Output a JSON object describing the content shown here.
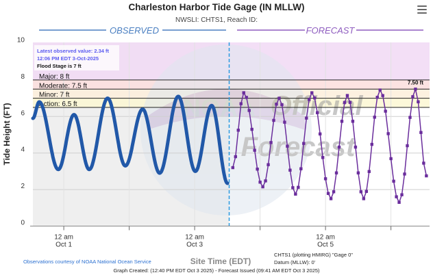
{
  "header": {
    "title": "Charleston Harbor Tide Gage (IN MLLW)",
    "subtitle": "NWSLI: CHTS1, Reach ID:",
    "menu_icon": "hamburger-menu-icon"
  },
  "sections": {
    "observed": "OBSERVED",
    "forecast": "FORECAST"
  },
  "info_box": {
    "latest_line1": "Latest observed value: 2.34 ft",
    "latest_line2": "12:06 PM EDT 3-Oct-2025",
    "flood_stage": "Flood Stage is 7 ft"
  },
  "watermark": {
    "text1": "Official",
    "text2": "Forecast",
    "seal_text1": "NATIONAL OCEANIC AND ATMOSPHERIC ADMINISTRATION",
    "seal_text2": "U.S. DEPARTMENT OF COMMERCE",
    "logo": "NOAA"
  },
  "footer": {
    "credit": "Observations courtesy of NOAA National Ocean Service",
    "xlabel": "Site Time (EDT)",
    "site_line1": "CHTS1 (plotting HMIRG) \"Gage 0\"",
    "site_line2": "Datum (MLLW): 0'",
    "created": "Graph Created: (12:40 PM EDT Oct 3 2025) - Forecast Issued (09:41 AM EDT Oct 3 2025)"
  },
  "chart_data": {
    "type": "line",
    "title": "Charleston Harbor Tide Gage (IN MLLW)",
    "ylabel": "Tide Height (FT)",
    "xlabel": "Site Time (EDT)",
    "ylim": [
      0,
      10
    ],
    "yticks": [
      0,
      2,
      4,
      6,
      8,
      10
    ],
    "xlim": [
      "2025-09-30 12:40",
      "2025-10-06 14:10"
    ],
    "xticks": [
      {
        "t": "2025-10-01 00:00",
        "line1": "12 am",
        "line2": "Oct 1"
      },
      {
        "t": "2025-10-02 00:00",
        "line1": "",
        "line2": ""
      },
      {
        "t": "2025-10-03 00:00",
        "line1": "12 am",
        "line2": "Oct 3"
      },
      {
        "t": "2025-10-04 00:00",
        "line1": "",
        "line2": ""
      },
      {
        "t": "2025-10-05 00:00",
        "line1": "12 am",
        "line2": "Oct 5"
      },
      {
        "t": "2025-10-06 00:00",
        "line1": "",
        "line2": ""
      }
    ],
    "grid": true,
    "now": "2025-10-03 12:40",
    "thresholds": [
      {
        "label": "Major: 8 ft",
        "value": 8,
        "color": "#f1d9f5"
      },
      {
        "label": "Moderate: 7.5 ft",
        "value": 7.5,
        "color": "#fbdedd"
      },
      {
        "label": "Minor: 7 ft",
        "value": 7,
        "color": "#fdeedb"
      },
      {
        "label": "Action: 6.5 ft",
        "value": 6.5,
        "color": "#fcf7d2"
      }
    ],
    "max_forecast_label": "7.50 ft",
    "series": [
      {
        "name": "OBSERVED",
        "color": "#2158a8",
        "points": [
          [
            "2025-09-30 12:40",
            5.9
          ],
          [
            "2025-09-30 15:00",
            6.8
          ],
          [
            "2025-09-30 22:00",
            3.1
          ],
          [
            "2025-10-01 03:45",
            6.1
          ],
          [
            "2025-10-01 09:20",
            3.1
          ],
          [
            "2025-10-01 16:05",
            7.0
          ],
          [
            "2025-10-01 22:35",
            3.3
          ],
          [
            "2025-10-02 04:55",
            6.4
          ],
          [
            "2025-10-02 11:10",
            2.9
          ],
          [
            "2025-10-02 18:00",
            7.1
          ],
          [
            "2025-10-03 00:15",
            3.0
          ],
          [
            "2025-10-03 06:15",
            6.6
          ],
          [
            "2025-10-03 12:06",
            2.34
          ]
        ]
      },
      {
        "name": "FORECAST",
        "color": "#6a2d9c",
        "points": [
          [
            "2025-10-03 14:00",
            3.2
          ],
          [
            "2025-10-03 18:00",
            7.3
          ],
          [
            "2025-10-04 01:00",
            2.15
          ],
          [
            "2025-10-04 07:00",
            7.0
          ],
          [
            "2025-10-04 13:00",
            1.75
          ],
          [
            "2025-10-04 19:00",
            7.3
          ],
          [
            "2025-10-05 02:00",
            1.5
          ],
          [
            "2025-10-05 08:00",
            7.15
          ],
          [
            "2025-10-05 14:00",
            1.5
          ],
          [
            "2025-10-05 20:00",
            7.45
          ],
          [
            "2025-10-06 03:00",
            1.3
          ],
          [
            "2025-10-06 09:00",
            7.5
          ],
          [
            "2025-10-06 13:00",
            2.75
          ]
        ]
      }
    ]
  }
}
